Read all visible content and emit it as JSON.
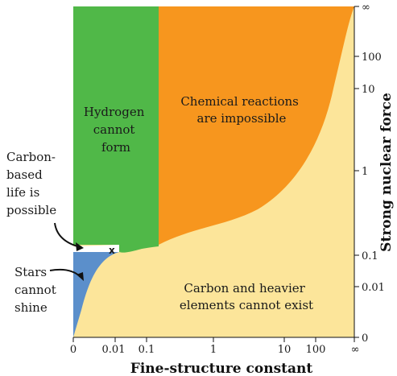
{
  "colors": {
    "hydrogen_region": "#50b848",
    "chemical_region": "#f7961e",
    "carbon_region": "#fce59a",
    "stars_region": "#5b8fcb",
    "life_marker": "#ffffff",
    "text": "#1a1a1a"
  },
  "regions": {
    "hydrogen": [
      "Hydrogen",
      "cannot",
      "form"
    ],
    "chemical": [
      "Chemical reactions",
      "are impossible"
    ],
    "carbon": [
      "Carbon and heavier",
      "elements cannot exist"
    ]
  },
  "annotations": {
    "carbon_life": [
      "Carbon-",
      "based",
      "life is",
      "possible"
    ],
    "stars": [
      "Stars",
      "cannot",
      "shine"
    ],
    "marker": "x"
  },
  "axes": {
    "x_title": "Fine-structure constant",
    "y_title": "Strong nuclear force",
    "x_ticks": [
      "0",
      "0.01",
      "0.1",
      "1",
      "10",
      "100",
      "∞"
    ],
    "y_ticks": [
      "∞",
      "100",
      "10",
      "1",
      "0.1",
      "0.01",
      "0"
    ]
  }
}
